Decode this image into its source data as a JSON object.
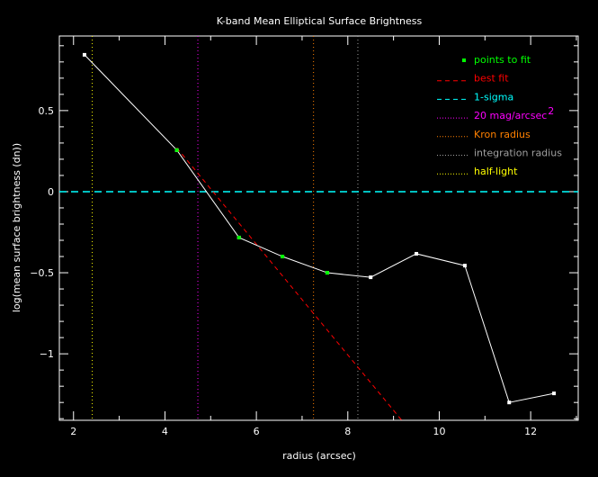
{
  "chart_data": {
    "type": "line",
    "title": "K-band Mean Elliptical Surface Brightness",
    "xlabel": "radius (arcsec)",
    "ylabel": "log(mean surface brightness (dn))",
    "xlim": [
      1.69,
      13.04
    ],
    "ylim": [
      -1.41,
      0.96
    ],
    "x_ticks": [
      2,
      4,
      6,
      8,
      10,
      12
    ],
    "x_tick_labels": [
      "2",
      "4",
      "6",
      "8",
      "10",
      "12"
    ],
    "y_ticks": [
      0.5,
      0,
      -0.5,
      -1
    ],
    "y_tick_labels": [
      "0.5",
      "0",
      "−0.5",
      "−1"
    ],
    "grid": false,
    "legend_position": "top-right",
    "profile": {
      "x": [
        2.24,
        4.26,
        5.62,
        6.57,
        7.55,
        8.5,
        9.5,
        10.56,
        11.53,
        12.51
      ],
      "y": [
        0.844,
        0.256,
        -0.283,
        -0.4,
        -0.5,
        -0.528,
        -0.383,
        -0.456,
        -1.3,
        -1.244
      ],
      "color": "#ffffff"
    },
    "points_to_fit": {
      "label": "points to fit",
      "x": [
        4.26,
        5.62,
        6.57,
        7.55
      ],
      "y": [
        0.256,
        -0.283,
        -0.4,
        -0.5
      ],
      "color": "#00ff00"
    },
    "best_fit": {
      "label": "best fit",
      "x": [
        4.26,
        9.18
      ],
      "y": [
        0.27,
        -1.41
      ],
      "color": "#ff0000"
    },
    "one_sigma": {
      "label": "1-sigma",
      "y": 0,
      "color": "#00ffff"
    },
    "vlines": [
      {
        "label": "20 mag/arcsec",
        "sup": "2",
        "x": 4.72,
        "color": "#ff00ff"
      },
      {
        "label": "Kron radius",
        "x": 7.25,
        "color": "#ff8000"
      },
      {
        "label": "integration radius",
        "x": 8.22,
        "color": "#a0a0a0"
      },
      {
        "label": "half-light",
        "x": 2.41,
        "color": "#ffff00"
      }
    ]
  }
}
